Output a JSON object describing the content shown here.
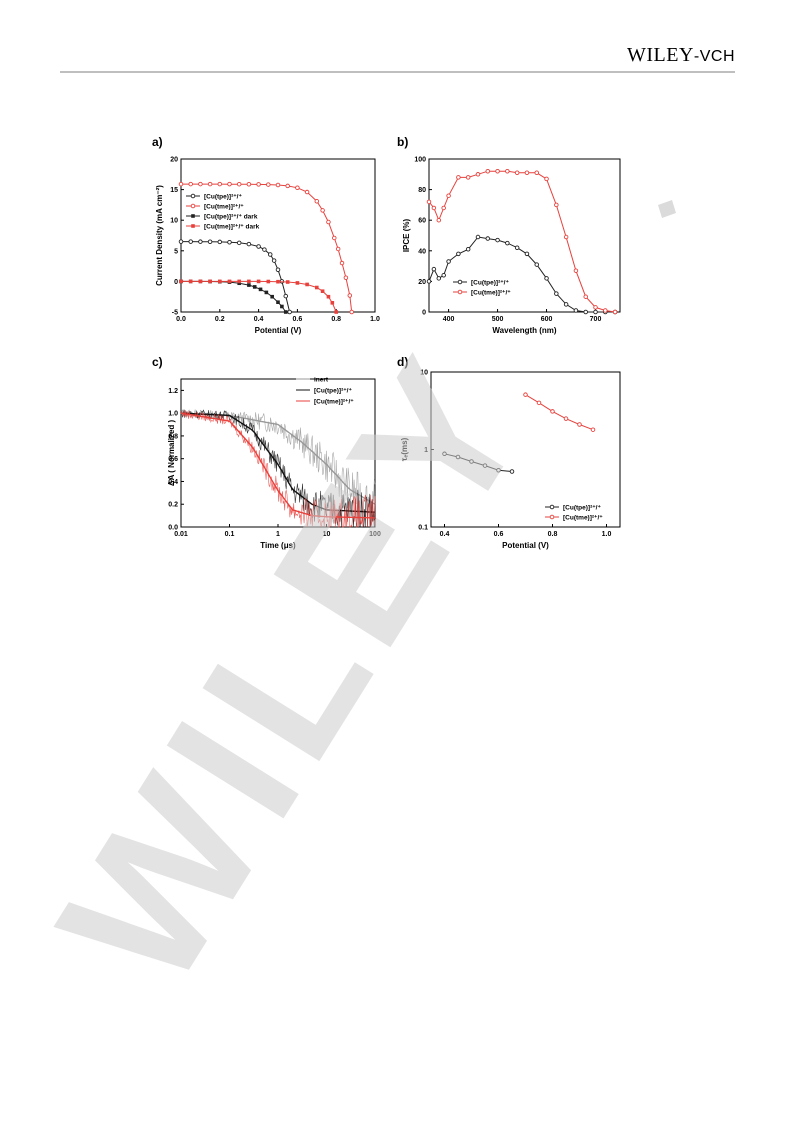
{
  "header": {
    "publisher_main": "WILEY",
    "publisher_suffix": "-VCH"
  },
  "watermark": {
    "text": "WILEY"
  },
  "chart_data": [
    {
      "panel": "a)",
      "type": "line",
      "xlabel": "Potential (V)",
      "ylabel": "Current Density (mA cm⁻²)",
      "xlim": [
        0.0,
        1.0
      ],
      "ylim": [
        -5,
        20
      ],
      "xticks": [
        "0.0",
        "0.2",
        "0.4",
        "0.6",
        "0.8",
        "1.0"
      ],
      "yticks": [
        "-5",
        "0",
        "5",
        "10",
        "15",
        "20"
      ],
      "legend_position": "top-left",
      "series": [
        {
          "name": "[Cu(tpe)]²⁺/⁺",
          "color": "#222222",
          "marker": "circle",
          "x": [
            0,
            0.05,
            0.1,
            0.15,
            0.2,
            0.25,
            0.3,
            0.35,
            0.4,
            0.43,
            0.46,
            0.48,
            0.5,
            0.52,
            0.54,
            0.56
          ],
          "y": [
            6.5,
            6.5,
            6.49,
            6.48,
            6.45,
            6.4,
            6.3,
            6.1,
            5.7,
            5.2,
            4.4,
            3.4,
            1.9,
            0,
            -2.4,
            -5
          ]
        },
        {
          "name": "[Cu(tme)]²⁺/⁺",
          "color": "#e8413c",
          "marker": "circle",
          "x": [
            0,
            0.05,
            0.1,
            0.15,
            0.2,
            0.25,
            0.3,
            0.35,
            0.4,
            0.45,
            0.5,
            0.55,
            0.6,
            0.65,
            0.7,
            0.73,
            0.76,
            0.79,
            0.81,
            0.83,
            0.85,
            0.87,
            0.88
          ],
          "y": [
            15.9,
            15.9,
            15.9,
            15.9,
            15.9,
            15.89,
            15.88,
            15.87,
            15.85,
            15.82,
            15.75,
            15.6,
            15.3,
            14.6,
            13.1,
            11.6,
            9.7,
            7.1,
            5.3,
            3.0,
            0.6,
            -2.3,
            -5
          ]
        },
        {
          "name": "[Cu(tpe)]²⁺/⁺ dark",
          "color": "#222222",
          "marker": "square",
          "x": [
            0,
            0.05,
            0.1,
            0.15,
            0.2,
            0.25,
            0.3,
            0.35,
            0.38,
            0.41,
            0.44,
            0.47,
            0.5,
            0.52,
            0.54
          ],
          "y": [
            0,
            0,
            0,
            -0.02,
            -0.05,
            -0.12,
            -0.3,
            -0.6,
            -0.9,
            -1.3,
            -1.8,
            -2.5,
            -3.4,
            -4.1,
            -5
          ]
        },
        {
          "name": "[Cu(tme)]²⁺/⁺ dark",
          "color": "#e8413c",
          "marker": "square",
          "x": [
            0,
            0.05,
            0.1,
            0.15,
            0.2,
            0.25,
            0.3,
            0.35,
            0.4,
            0.45,
            0.5,
            0.55,
            0.6,
            0.65,
            0.7,
            0.73,
            0.76,
            0.78,
            0.8
          ],
          "y": [
            0,
            0,
            0,
            0,
            0,
            0,
            0,
            0,
            0,
            -0.02,
            -0.05,
            -0.1,
            -0.25,
            -0.5,
            -1.0,
            -1.6,
            -2.5,
            -3.5,
            -5
          ]
        }
      ]
    },
    {
      "panel": "b)",
      "type": "line",
      "xlabel": "Wavelength (nm)",
      "ylabel": "IPCE (%)",
      "xlim": [
        360,
        750
      ],
      "ylim": [
        0,
        100
      ],
      "xticks": [
        "400",
        "500",
        "600",
        "700"
      ],
      "yticks": [
        "0",
        "20",
        "40",
        "60",
        "80",
        "100"
      ],
      "legend_position": "bottom-left",
      "series": [
        {
          "name": "[Cu(tpe)]²⁺/⁺",
          "color": "#222222",
          "x": [
            360,
            370,
            380,
            390,
            400,
            420,
            440,
            460,
            480,
            500,
            520,
            540,
            560,
            580,
            600,
            620,
            640,
            660,
            680,
            700,
            720,
            740
          ],
          "y": [
            20,
            28,
            22,
            24,
            33,
            38,
            41,
            49,
            48,
            47,
            45,
            42,
            38,
            31,
            22,
            12,
            5,
            1,
            0,
            0,
            0,
            0
          ]
        },
        {
          "name": "[Cu(tme)]²⁺/⁺",
          "color": "#e8413c",
          "x": [
            360,
            370,
            380,
            390,
            400,
            420,
            440,
            460,
            480,
            500,
            520,
            540,
            560,
            580,
            600,
            620,
            640,
            660,
            680,
            700,
            720,
            740
          ],
          "y": [
            72,
            68,
            60,
            68,
            76,
            88,
            88,
            90,
            92,
            92,
            92,
            91,
            91,
            91,
            87,
            70,
            49,
            27,
            10,
            3,
            1,
            0
          ]
        }
      ]
    },
    {
      "panel": "c)",
      "type": "line",
      "xlabel": "Time (μs)",
      "ylabel": "ΔA ( Normalized )",
      "xlim": [
        0.01,
        100
      ],
      "xscale": "log",
      "ylim": [
        0.0,
        1.3
      ],
      "xticks": [
        "0.01",
        "0.1",
        "1",
        "10",
        "100"
      ],
      "yticks": [
        "0.0",
        "0.2",
        "0.4",
        "0.6",
        "0.8",
        "1.0",
        "1.2"
      ],
      "legend_position": "top-right",
      "series": [
        {
          "name": "inert",
          "color": "#999999",
          "x": [
            0.01,
            0.1,
            1,
            3,
            10,
            30,
            100
          ],
          "y": [
            1.0,
            0.98,
            0.9,
            0.75,
            0.55,
            0.33,
            0.2
          ]
        },
        {
          "name": "[Cu(tpe)]²⁺/⁺",
          "color": "#111111",
          "x": [
            0.01,
            0.1,
            0.3,
            1,
            2,
            5,
            10,
            100
          ],
          "y": [
            1.0,
            0.98,
            0.85,
            0.55,
            0.33,
            0.2,
            0.15,
            0.13
          ]
        },
        {
          "name": "[Cu(tme)]²⁺/⁺",
          "color": "#e8413c",
          "x": [
            0.01,
            0.1,
            0.3,
            1,
            2,
            5,
            10,
            100
          ],
          "y": [
            1.0,
            0.93,
            0.7,
            0.32,
            0.15,
            0.1,
            0.09,
            0.08
          ]
        }
      ]
    },
    {
      "panel": "d)",
      "type": "scatter",
      "xlabel": "Potential (V)",
      "ylabel": "τₑ(ms)",
      "xlim": [
        0.35,
        1.05
      ],
      "ylim": [
        0.1,
        10
      ],
      "yscale": "log",
      "xticks": [
        "0.4",
        "0.6",
        "0.8",
        "1.0"
      ],
      "yticks": [
        "0.1",
        "1",
        "10"
      ],
      "legend_position": "bottom-right",
      "series": [
        {
          "name": "[Cu(tpe)]²⁺/⁺",
          "color": "#222222",
          "x": [
            0.4,
            0.45,
            0.5,
            0.55,
            0.6,
            0.65
          ],
          "y": [
            0.88,
            0.8,
            0.7,
            0.62,
            0.54,
            0.52
          ]
        },
        {
          "name": "[Cu(tme)]²⁺/⁺",
          "color": "#e8413c",
          "x": [
            0.7,
            0.75,
            0.8,
            0.85,
            0.9,
            0.95
          ],
          "y": [
            5.1,
            4.0,
            3.1,
            2.5,
            2.1,
            1.8
          ]
        }
      ]
    }
  ]
}
